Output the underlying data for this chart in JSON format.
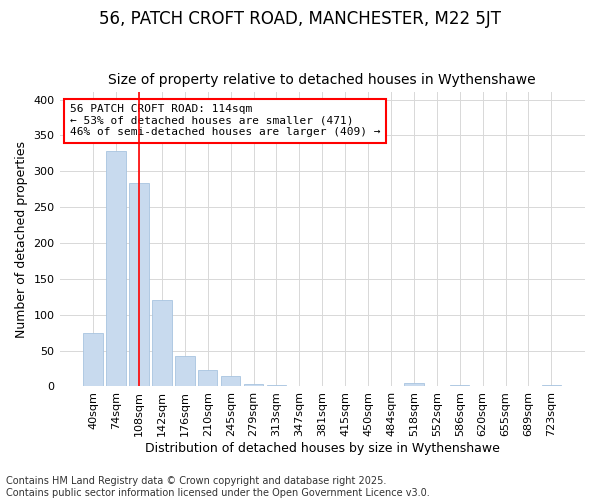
{
  "title_line1": "56, PATCH CROFT ROAD, MANCHESTER, M22 5JT",
  "title_line2": "Size of property relative to detached houses in Wythenshawe",
  "xlabel": "Distribution of detached houses by size in Wythenshawe",
  "ylabel": "Number of detached properties",
  "bar_color": "#c8daee",
  "bar_edgecolor": "#a8c4e0",
  "background_color": "#ffffff",
  "grid_color": "#d8d8d8",
  "categories": [
    "40sqm",
    "74sqm",
    "108sqm",
    "142sqm",
    "176sqm",
    "210sqm",
    "245sqm",
    "279sqm",
    "313sqm",
    "347sqm",
    "381sqm",
    "415sqm",
    "450sqm",
    "484sqm",
    "518sqm",
    "552sqm",
    "586sqm",
    "620sqm",
    "655sqm",
    "689sqm",
    "723sqm"
  ],
  "values": [
    75,
    328,
    283,
    120,
    43,
    23,
    14,
    4,
    2,
    1,
    0,
    0,
    0,
    0,
    5,
    0,
    2,
    0,
    0,
    0,
    2
  ],
  "ylim": [
    0,
    410
  ],
  "yticks": [
    0,
    50,
    100,
    150,
    200,
    250,
    300,
    350,
    400
  ],
  "red_line_x": 2.0,
  "annotation_text": "56 PATCH CROFT ROAD: 114sqm\n← 53% of detached houses are smaller (471)\n46% of semi-detached houses are larger (409) →",
  "footer_line1": "Contains HM Land Registry data © Crown copyright and database right 2025.",
  "footer_line2": "Contains public sector information licensed under the Open Government Licence v3.0.",
  "title_fontsize": 12,
  "subtitle_fontsize": 10,
  "axis_label_fontsize": 9,
  "tick_fontsize": 8,
  "annotation_fontsize": 8,
  "footer_fontsize": 7
}
